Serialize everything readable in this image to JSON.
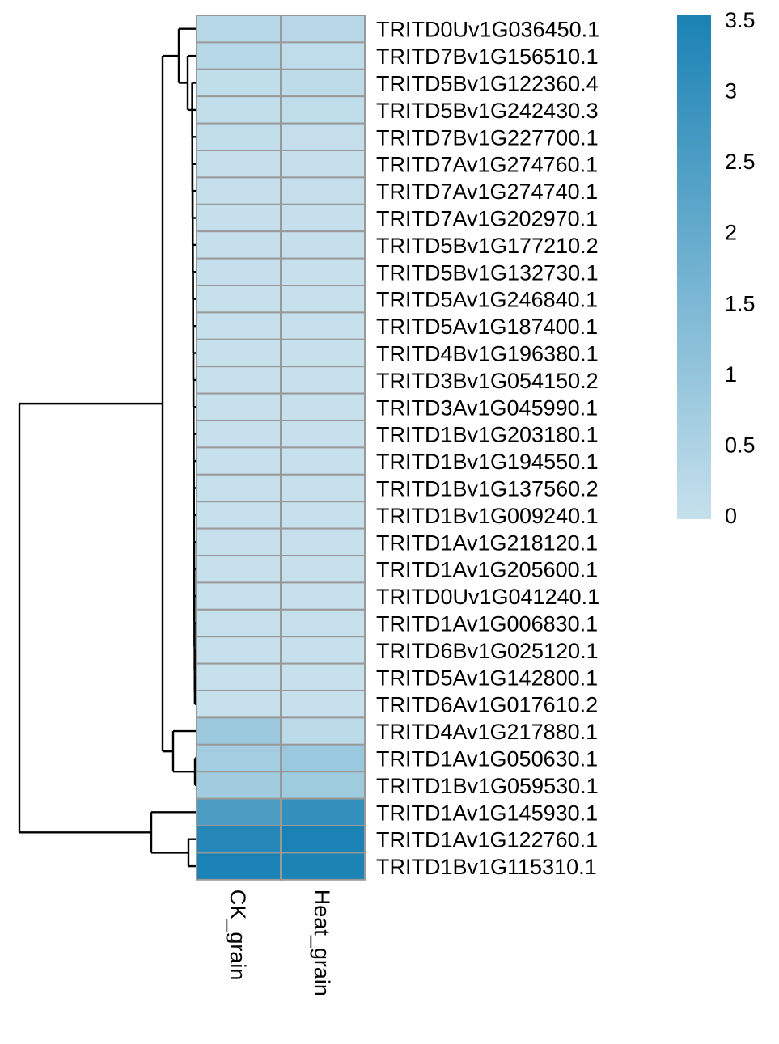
{
  "chart_data": {
    "type": "heatmap",
    "title": "",
    "xlabel": "",
    "ylabel": "",
    "columns": [
      "CK_grain",
      "Heat_grain"
    ],
    "rows": [
      "TRITD0Uv1G036450.1",
      "TRITD7Bv1G156510.1",
      "TRITD5Bv1G122360.4",
      "TRITD5Bv1G242430.3",
      "TRITD7Bv1G227700.1",
      "TRITD7Av1G274760.1",
      "TRITD7Av1G274740.1",
      "TRITD7Av1G202970.1",
      "TRITD5Bv1G177210.2",
      "TRITD5Bv1G132730.1",
      "TRITD5Av1G246840.1",
      "TRITD5Av1G187400.1",
      "TRITD4Bv1G196380.1",
      "TRITD3Bv1G054150.2",
      "TRITD3Av1G045990.1",
      "TRITD1Bv1G203180.1",
      "TRITD1Bv1G194550.1",
      "TRITD1Bv1G137560.2",
      "TRITD1Bv1G009240.1",
      "TRITD1Av1G218120.1",
      "TRITD1Av1G205600.1",
      "TRITD0Uv1G041240.1",
      "TRITD1Av1G006830.1",
      "TRITD6Bv1G025120.1",
      "TRITD5Av1G142800.1",
      "TRITD6Av1G017610.2",
      "TRITD4Av1G217880.1",
      "TRITD1Av1G050630.1",
      "TRITD1Bv1G059530.1",
      "TRITD1Av1G145930.1",
      "TRITD1Av1G122760.1",
      "TRITD1Bv1G115310.1"
    ],
    "values": [
      [
        0.3,
        0.28
      ],
      [
        0.35,
        0.15
      ],
      [
        0.12,
        0.18
      ],
      [
        0.08,
        0.12
      ],
      [
        0.06,
        0.05
      ],
      [
        0.04,
        0.03
      ],
      [
        0.03,
        0.04
      ],
      [
        0.02,
        0.03
      ],
      [
        0.02,
        0.02
      ],
      [
        0.02,
        0.01
      ],
      [
        0.01,
        0.01
      ],
      [
        0.01,
        0.01
      ],
      [
        0.01,
        0.01
      ],
      [
        0.01,
        0.0
      ],
      [
        0.01,
        0.0
      ],
      [
        0.0,
        0.0
      ],
      [
        0.0,
        0.0
      ],
      [
        0.0,
        0.0
      ],
      [
        0.0,
        0.0
      ],
      [
        0.0,
        0.0
      ],
      [
        0.0,
        0.0
      ],
      [
        0.0,
        0.0
      ],
      [
        0.0,
        0.0
      ],
      [
        0.0,
        0.0
      ],
      [
        0.0,
        0.0
      ],
      [
        0.0,
        0.0
      ],
      [
        0.85,
        0.2
      ],
      [
        0.7,
        0.9
      ],
      [
        0.75,
        0.8
      ],
      [
        2.5,
        3.0
      ],
      [
        3.3,
        3.5
      ],
      [
        3.5,
        3.45
      ]
    ],
    "color_scale": {
      "min": 0,
      "max": 3.5,
      "low_color": "#c6e0ec",
      "high_color": "#1a82b4"
    },
    "legend": {
      "placement": "right",
      "ticks": [
        0,
        0.5,
        1,
        1.5,
        2,
        2.5,
        3,
        3.5
      ],
      "tick_labels": [
        "0",
        "0.5",
        "1",
        "1.5",
        "2",
        "2.5",
        "3",
        "3.5"
      ]
    },
    "row_dendrogram": true
  }
}
